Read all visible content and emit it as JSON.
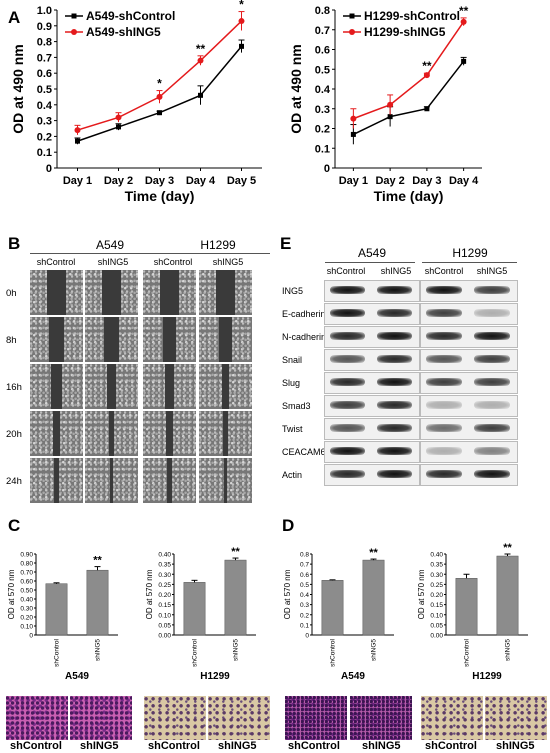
{
  "panels": {
    "A": "A",
    "B": "B",
    "C": "C",
    "D": "D",
    "E": "E"
  },
  "chart_data": [
    {
      "id": "A-left",
      "type": "line",
      "categories": [
        "Day 1",
        "Day 2",
        "Day 3",
        "Day 4",
        "Day 5"
      ],
      "ylabel": "OD at 490 nm",
      "xlabel": "Time (day)",
      "ylim": [
        0,
        1.0
      ],
      "yticks": [
        "0",
        "0.1",
        "0.2",
        "0.3",
        "0.4",
        "0.5",
        "0.6",
        "0.7",
        "0.8",
        "0.9",
        "1.0"
      ],
      "series": [
        {
          "name": "A549-shControl",
          "color": "#000000",
          "values": [
            0.17,
            0.26,
            0.35,
            0.46,
            0.77
          ],
          "errors": [
            0.02,
            0.02,
            0.01,
            0.06,
            0.04
          ]
        },
        {
          "name": "A549-shING5",
          "color": "#e41a1c",
          "values": [
            0.24,
            0.32,
            0.45,
            0.68,
            0.93
          ],
          "errors": [
            0.03,
            0.03,
            0.04,
            0.03,
            0.06
          ]
        }
      ],
      "significance": [
        "",
        "",
        "*",
        "**",
        "*"
      ]
    },
    {
      "id": "A-right",
      "type": "line",
      "categories": [
        "Day 1",
        "Day 2",
        "Day 3",
        "Day 4"
      ],
      "ylabel": "OD at 490 nm",
      "xlabel": "Time (day)",
      "ylim": [
        0,
        0.8
      ],
      "yticks": [
        "0",
        "0.1",
        "0.2",
        "0.3",
        "0.4",
        "0.5",
        "0.6",
        "0.7",
        "0.8"
      ],
      "series": [
        {
          "name": "H1299-shControl",
          "color": "#000000",
          "values": [
            0.17,
            0.26,
            0.3,
            0.54
          ],
          "errors": [
            0.05,
            0.05,
            0.01,
            0.02
          ]
        },
        {
          "name": "H1299-shING5",
          "color": "#e41a1c",
          "values": [
            0.25,
            0.32,
            0.47,
            0.74
          ],
          "errors": [
            0.05,
            0.05,
            0.01,
            0.02
          ]
        }
      ],
      "significance": [
        "",
        "",
        "**",
        "**"
      ]
    },
    {
      "id": "C-left",
      "type": "bar",
      "categories": [
        "shControl",
        "shING5"
      ],
      "values": [
        0.57,
        0.72
      ],
      "errors": [
        0.01,
        0.04
      ],
      "ylabel": "OD at 570 nm",
      "xlabel": "A549",
      "ylim": [
        0,
        0.9
      ],
      "yticks": [
        "0",
        "0.10",
        "0.20",
        "0.30",
        "0.40",
        "0.50",
        "0.60",
        "0.70",
        "0.80",
        "0.90"
      ],
      "significance": "**"
    },
    {
      "id": "C-right",
      "type": "bar",
      "categories": [
        "shControl",
        "shING5"
      ],
      "values": [
        0.26,
        0.37
      ],
      "errors": [
        0.01,
        0.01
      ],
      "ylabel": "OD at 570 nm",
      "xlabel": "H1299",
      "ylim": [
        0,
        0.4
      ],
      "yticks": [
        "0.00",
        "0.05",
        "0.10",
        "0.15",
        "0.20",
        "0.25",
        "0.30",
        "0.35",
        "0.40"
      ],
      "significance": "**"
    },
    {
      "id": "D-left",
      "type": "bar",
      "categories": [
        "shControl",
        "shING5"
      ],
      "values": [
        0.54,
        0.74
      ],
      "errors": [
        0.005,
        0.01
      ],
      "ylabel": "OD at 570 nm",
      "xlabel": "A549",
      "ylim": [
        0,
        0.8
      ],
      "yticks": [
        "0",
        "0.1",
        "0.2",
        "0.3",
        "0.4",
        "0.5",
        "0.6",
        "0.7",
        "0.8"
      ],
      "significance": "**"
    },
    {
      "id": "D-right",
      "type": "bar",
      "categories": [
        "shControl",
        "shING5"
      ],
      "values": [
        0.28,
        0.39
      ],
      "errors": [
        0.02,
        0.01
      ],
      "ylabel": "OD at 570 nm",
      "xlabel": "H1299",
      "ylim": [
        0,
        0.4
      ],
      "yticks": [
        "0.00",
        "0.05",
        "0.10",
        "0.15",
        "0.20",
        "0.25",
        "0.30",
        "0.35",
        "0.40"
      ],
      "significance": "**"
    }
  ],
  "wound": {
    "cells": [
      "A549",
      "H1299"
    ],
    "groups": [
      "shControl",
      "shING5",
      "shControl",
      "shING5"
    ],
    "times": [
      "0h",
      "8h",
      "16h",
      "20h",
      "24h"
    ]
  },
  "blot": {
    "cells": [
      "A549",
      "H1299"
    ],
    "groups": [
      "shControl",
      "shING5",
      "shControl",
      "shING5"
    ],
    "proteins": [
      "ING5",
      "E-cadherin",
      "N-cadherin",
      "Snail",
      "Slug",
      "Smad3",
      "Twist",
      "CEACAM6",
      "Actin"
    ]
  },
  "micro_labels": [
    "shControl",
    "shING5",
    "shControl",
    "shING5",
    "shControl",
    "shING5",
    "shControl",
    "shING5"
  ]
}
